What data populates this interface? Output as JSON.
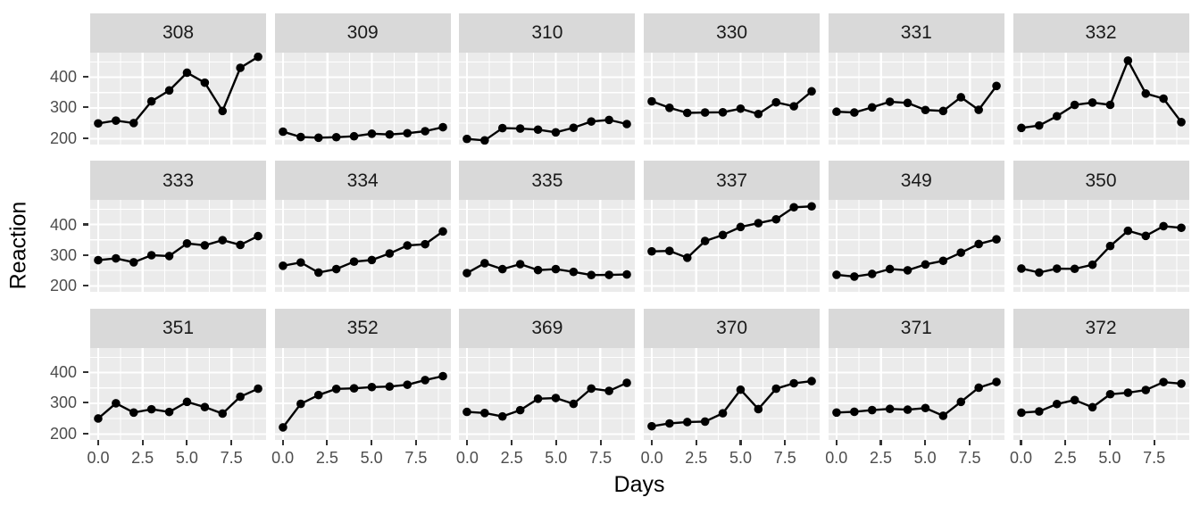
{
  "chart_data": {
    "type": "line",
    "xlabel": "Days",
    "ylabel": "Reaction",
    "legend": "none",
    "grid": "major and minor gridlines, white on gray panels",
    "layout": {
      "nrow": 3,
      "ncol": 6,
      "style": "faceted small multiples, strip labels on top"
    },
    "xlim": [
      -0.45,
      9.45
    ],
    "ylim": [
      180.7,
      480
    ],
    "x": [
      0,
      1,
      2,
      3,
      4,
      5,
      6,
      7,
      8,
      9
    ],
    "x_ticks": {
      "values": [
        0,
        2.5,
        5,
        7.5
      ],
      "labels": [
        "0.0",
        "2.5",
        "5.0",
        "7.5"
      ]
    },
    "y_ticks": {
      "values": [
        400,
        300,
        200
      ],
      "labels": [
        "400",
        "300",
        "200"
      ]
    },
    "x_minor": [
      1.25,
      3.75,
      6.25,
      8.75
    ],
    "y_minor": [
      450,
      350,
      250
    ],
    "facets": [
      {
        "label": "308",
        "y": [
          249.6,
          258.7,
          250.8,
          321.4,
          356.9,
          414.7,
          382.2,
          290.1,
          430.6,
          466.4
        ]
      },
      {
        "label": "309",
        "y": [
          222.7,
          205.3,
          203.0,
          204.7,
          207.7,
          216.0,
          213.6,
          217.7,
          224.3,
          237.3
        ]
      },
      {
        "label": "310",
        "y": [
          199.1,
          194.3,
          234.3,
          232.8,
          229.3,
          220.5,
          235.4,
          255.8,
          261.0,
          247.5
        ]
      },
      {
        "label": "330",
        "y": [
          321.5,
          300.4,
          283.9,
          285.1,
          285.8,
          297.6,
          280.2,
          318.3,
          305.3,
          354.0
        ]
      },
      {
        "label": "331",
        "y": [
          287.6,
          285.0,
          301.8,
          320.1,
          316.3,
          293.3,
          290.1,
          334.8,
          293.7,
          371.6
        ]
      },
      {
        "label": "332",
        "y": [
          234.9,
          242.8,
          273.0,
          309.8,
          317.5,
          310.0,
          454.2,
          346.8,
          330.3,
          253.9
        ]
      },
      {
        "label": "333",
        "y": [
          283.8,
          289.6,
          276.8,
          299.8,
          297.2,
          338.2,
          332.0,
          348.8,
          333.4,
          362.0
        ]
      },
      {
        "label": "334",
        "y": [
          265.5,
          276.2,
          243.4,
          254.7,
          279.0,
          284.2,
          305.5,
          331.5,
          335.7,
          377.3
        ]
      },
      {
        "label": "335",
        "y": [
          241.6,
          273.9,
          254.5,
          270.8,
          251.5,
          254.6,
          245.5,
          235.3,
          235.8,
          237.2
        ]
      },
      {
        "label": "337",
        "y": [
          312.4,
          313.8,
          291.6,
          346.1,
          365.7,
          391.8,
          404.3,
          416.7,
          455.9,
          458.9
        ]
      },
      {
        "label": "349",
        "y": [
          236.1,
          230.3,
          238.9,
          254.9,
          250.7,
          269.8,
          281.6,
          308.1,
          336.3,
          351.6
        ]
      },
      {
        "label": "350",
        "y": [
          256.3,
          243.5,
          256.2,
          255.5,
          268.9,
          329.7,
          379.4,
          362.9,
          394.5,
          389.1
        ]
      },
      {
        "label": "351",
        "y": [
          250.5,
          300.1,
          269.9,
          280.6,
          271.8,
          304.6,
          287.7,
          266.6,
          321.5,
          347.6
        ]
      },
      {
        "label": "352",
        "y": [
          221.7,
          298.2,
          326.9,
          346.9,
          348.7,
          352.8,
          354.4,
          360.4,
          375.6,
          388.5
        ]
      },
      {
        "label": "369",
        "y": [
          271.9,
          268.4,
          257.2,
          277.7,
          314.8,
          317.2,
          298.1,
          348.1,
          340.3,
          366.5
        ]
      },
      {
        "label": "370",
        "y": [
          225.3,
          234.5,
          238.9,
          240.5,
          267.5,
          344.2,
          281.1,
          347.6,
          365.2,
          372.2
        ]
      },
      {
        "label": "371",
        "y": [
          269.9,
          272.4,
          277.9,
          281.8,
          279.2,
          284.5,
          259.3,
          304.6,
          350.8,
          369.5
        ]
      },
      {
        "label": "372",
        "y": [
          269.4,
          273.5,
          297.6,
          310.6,
          287.2,
          329.6,
          334.5,
          343.2,
          369.1,
          364.1
        ]
      }
    ],
    "colors": {
      "point_line": "#000000",
      "panel_bg": "#EBEBEB",
      "strip_bg": "#D9D9D9",
      "grid": "#FFFFFF",
      "axis_text": "#4D4D4D",
      "strip_text": "#1A1A1A",
      "axis_title": "#000000",
      "tick_mark": "#333333"
    }
  }
}
